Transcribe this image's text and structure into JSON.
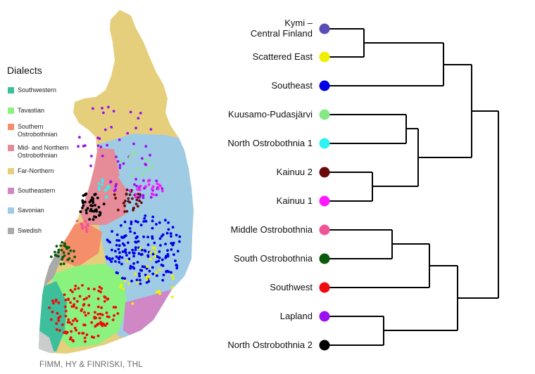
{
  "legend": {
    "title": "Dialects",
    "items": [
      {
        "label": "Southwestern",
        "color": "#3cbf9a"
      },
      {
        "label": "Tavastian",
        "color": "#8cf27e"
      },
      {
        "label": "Southern Ostrobothnian",
        "color": "#f58e6a"
      },
      {
        "label": "Mid- and Northern Ostrobothnian",
        "color": "#e58c98"
      },
      {
        "label": "Far-Northern",
        "color": "#e5cf7c"
      },
      {
        "label": "Southeastern",
        "color": "#d087c6"
      },
      {
        "label": "Savonian",
        "color": "#9fcbe5"
      },
      {
        "label": "Swedish",
        "color": "#aaaaaa"
      }
    ]
  },
  "credit": "FIMM, HY & FINRISKI, THL",
  "dendrogram": {
    "leaves": [
      {
        "label": "Kymi –\nCentral Finland",
        "color": "#5a4db5"
      },
      {
        "label": "Scattered East",
        "color": "#f0f000"
      },
      {
        "label": "Southeast",
        "color": "#0000e6"
      },
      {
        "label": "Kuusamo-Pudasjärvi",
        "color": "#88e888"
      },
      {
        "label": "North Ostrobothnia 1",
        "color": "#2ef2f2"
      },
      {
        "label": "Kainuu 2",
        "color": "#6a0a0a"
      },
      {
        "label": "Kainuu 1",
        "color": "#ff1aff"
      },
      {
        "label": "Middle Ostrobothnia",
        "color": "#f0559a"
      },
      {
        "label": "South Ostrobothnia",
        "color": "#0b5a0b"
      },
      {
        "label": "Southwest",
        "color": "#f00a0a"
      },
      {
        "label": "Lapland",
        "color": "#9a10f0"
      },
      {
        "label": "North Ostrobothnia 2",
        "color": "#000000"
      }
    ]
  }
}
